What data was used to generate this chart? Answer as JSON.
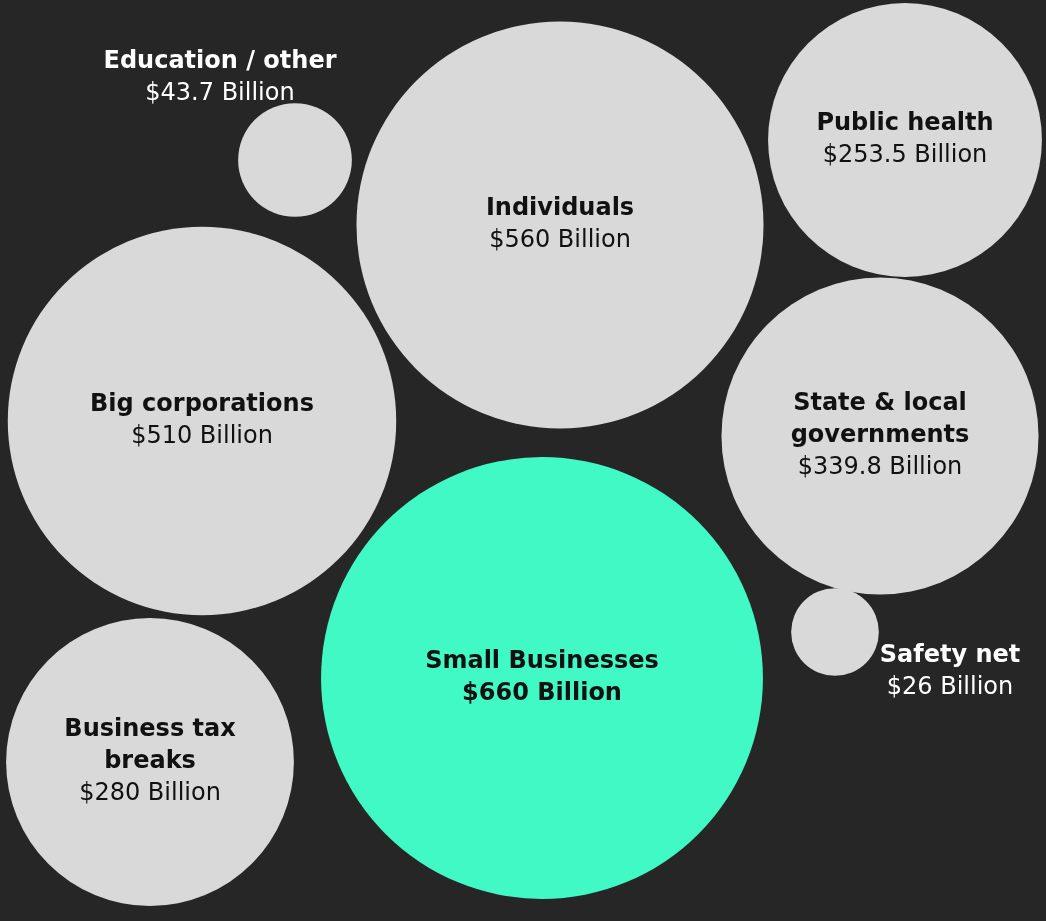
{
  "chart_data": {
    "type": "other",
    "categories": [
      "Education / other",
      "Individuals",
      "Public health",
      "Big corporations",
      "State & local governments",
      "Small Businesses",
      "Safety net",
      "Business tax breaks"
    ],
    "values": [
      43.7,
      560,
      253.5,
      510,
      339.8,
      660,
      26,
      280
    ],
    "value_labels": [
      "$43.7 Billion",
      "$560 Billion",
      "$253.5 Billion",
      "$510 Billion",
      "$339.8 Billion",
      "$660 Billion",
      "$26 Billion",
      "$280 Billion"
    ],
    "colors": [
      "#d9d9d9",
      "#d9d9d9",
      "#d9d9d9",
      "#d9d9d9",
      "#d9d9d9",
      "#40f9c5",
      "#d9d9d9",
      "#d9d9d9"
    ]
  }
}
